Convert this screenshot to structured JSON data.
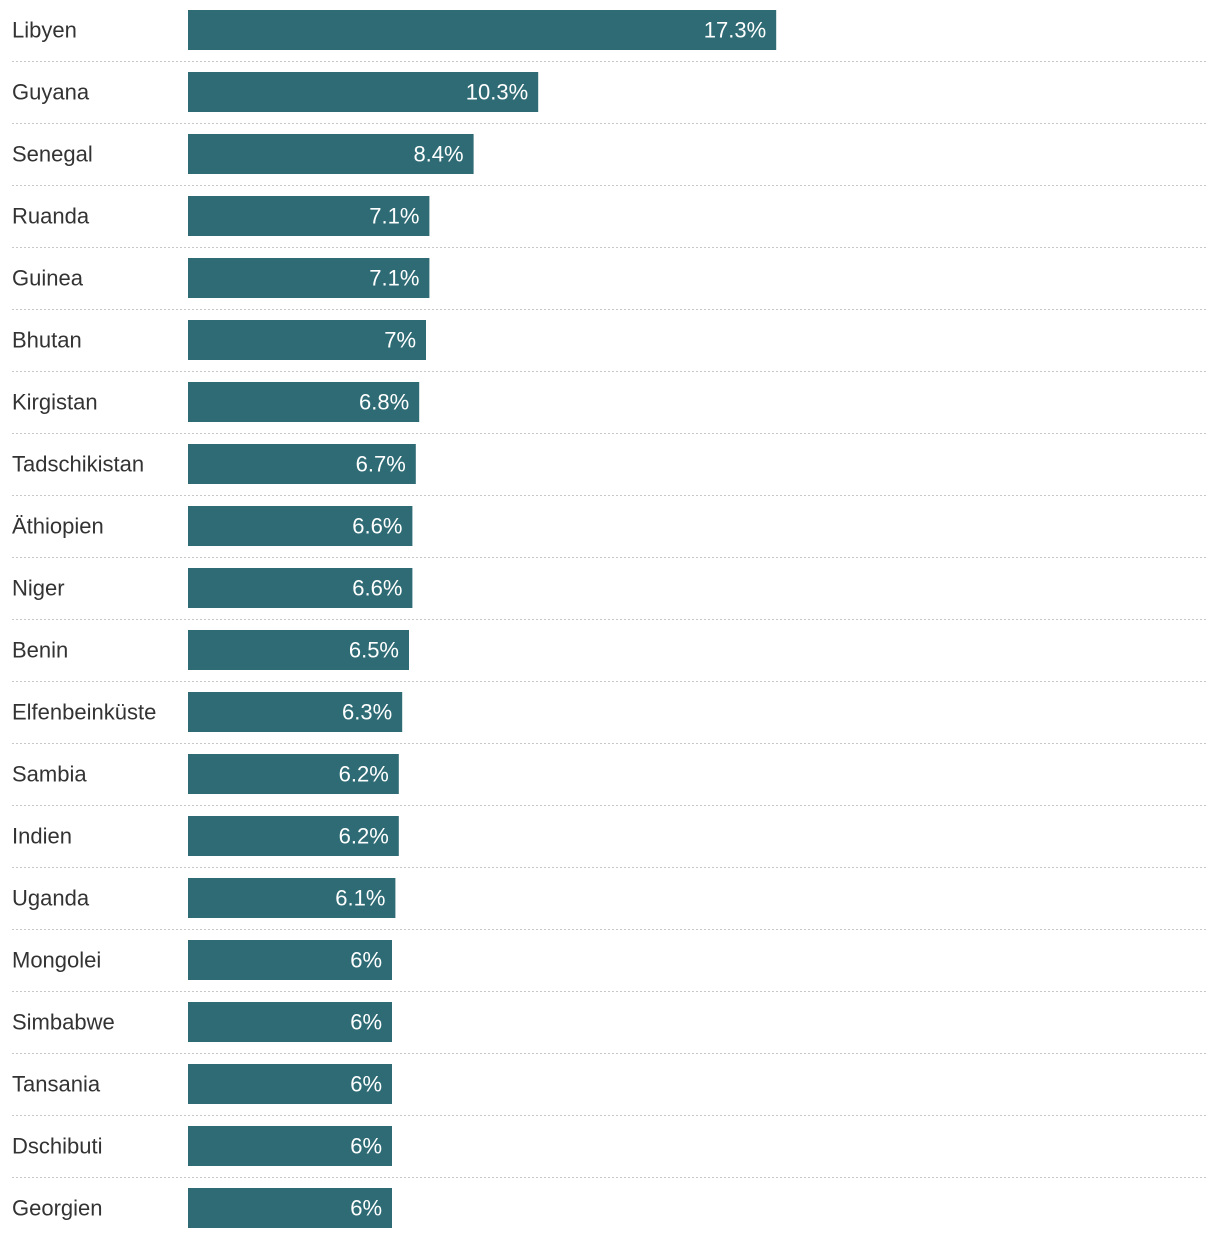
{
  "chart_data": {
    "type": "bar",
    "orientation": "horizontal",
    "categories": [
      "Libyen",
      "Guyana",
      "Senegal",
      "Ruanda",
      "Guinea",
      "Bhutan",
      "Kirgistan",
      "Tadschikistan",
      "Äthiopien",
      "Niger",
      "Benin",
      "Elfenbeinküste",
      "Sambia",
      "Indien",
      "Uganda",
      "Mongolei",
      "Simbabwe",
      "Tansania",
      "Dschibuti",
      "Georgien"
    ],
    "values": [
      17.3,
      10.3,
      8.4,
      7.1,
      7.1,
      7.0,
      6.8,
      6.7,
      6.6,
      6.6,
      6.5,
      6.3,
      6.2,
      6.2,
      6.1,
      6.0,
      6.0,
      6.0,
      6.0,
      6.0
    ],
    "value_labels": [
      "17.3%",
      "10.3%",
      "8.4%",
      "7.1%",
      "7.1%",
      "7%",
      "6.8%",
      "6.7%",
      "6.6%",
      "6.6%",
      "6.5%",
      "6.3%",
      "6.2%",
      "6.2%",
      "6.1%",
      "6%",
      "6%",
      "6%",
      "6%",
      "6%"
    ],
    "xlim": [
      0,
      30
    ],
    "grid": "dotted row separators",
    "legend": "none",
    "colors": {
      "bar": "#2e6b75",
      "label": "#333333",
      "value_label": "#ffffff",
      "separator": "#c8c8c8"
    }
  }
}
